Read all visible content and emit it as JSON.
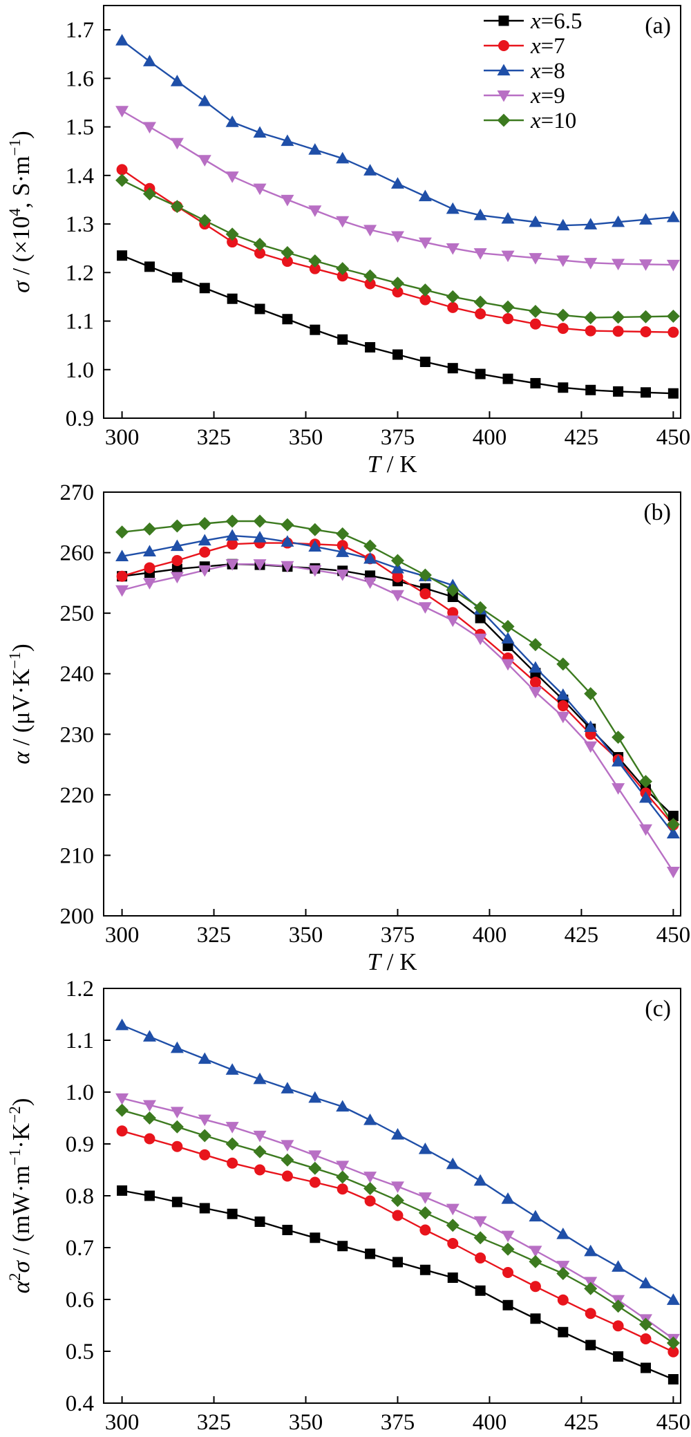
{
  "series_styles": [
    {
      "name": "6.5",
      "color": "#000000",
      "marker": "square"
    },
    {
      "name": "7",
      "color": "#e8141c",
      "marker": "circle"
    },
    {
      "name": "8",
      "color": "#1f4fa8",
      "marker": "triangle-up"
    },
    {
      "name": "9",
      "color": "#b86fc4",
      "marker": "triangle-down"
    },
    {
      "name": "10",
      "color": "#3c7a1f",
      "marker": "diamond"
    }
  ],
  "legend": {
    "prefix": "x",
    "eq": "=",
    "entries": [
      "6.5",
      "7",
      "8",
      "9",
      "10"
    ],
    "placement": "top-right (panel a)"
  },
  "chart_data": [
    {
      "type": "line",
      "panel": "(a)",
      "ylabel": {
        "symbol": "σ",
        "text": " / (×10",
        "sup": "4",
        "unit": ", S·m",
        "unitsup": "−1",
        "close": ")"
      },
      "xlabel": {
        "symbol": "T",
        "text": " / K"
      },
      "xlim": [
        295,
        452
      ],
      "ylim": [
        0.9,
        1.75
      ],
      "xticks": [
        300,
        325,
        350,
        375,
        400,
        425,
        450
      ],
      "yticks": [
        0.9,
        1.0,
        1.1,
        1.2,
        1.3,
        1.4,
        1.5,
        1.6,
        1.7
      ],
      "ytick_labels": [
        "0.9",
        "1.0",
        "1.1",
        "1.2",
        "1.3",
        "1.4",
        "1.5",
        "1.6",
        "1.7"
      ],
      "x": [
        300,
        307.5,
        315,
        322.5,
        330,
        337.5,
        345,
        352.5,
        360,
        367.5,
        375,
        382.5,
        390,
        397.5,
        405,
        412.5,
        420,
        427.5,
        435,
        442.5,
        450
      ],
      "series": [
        {
          "name": "6.5",
          "values": [
            1.235,
            1.212,
            1.19,
            1.168,
            1.146,
            1.125,
            1.104,
            1.082,
            1.062,
            1.046,
            1.031,
            1.016,
            1.003,
            0.991,
            0.981,
            0.972,
            0.963,
            0.958,
            0.955,
            0.953,
            0.951
          ]
        },
        {
          "name": "7",
          "values": [
            1.412,
            1.373,
            1.336,
            1.3,
            1.263,
            1.24,
            1.223,
            1.208,
            1.193,
            1.177,
            1.16,
            1.144,
            1.128,
            1.115,
            1.105,
            1.094,
            1.085,
            1.08,
            1.079,
            1.078,
            1.077
          ]
        },
        {
          "name": "8",
          "values": [
            1.678,
            1.635,
            1.594,
            1.553,
            1.51,
            1.488,
            1.471,
            1.453,
            1.435,
            1.41,
            1.383,
            1.357,
            1.331,
            1.318,
            1.311,
            1.304,
            1.297,
            1.299,
            1.304,
            1.309,
            1.314
          ]
        },
        {
          "name": "9",
          "values": [
            1.533,
            1.5,
            1.467,
            1.432,
            1.398,
            1.373,
            1.35,
            1.328,
            1.306,
            1.288,
            1.275,
            1.262,
            1.25,
            1.24,
            1.235,
            1.23,
            1.225,
            1.22,
            1.218,
            1.217,
            1.216
          ]
        },
        {
          "name": "10",
          "values": [
            1.39,
            1.362,
            1.336,
            1.307,
            1.279,
            1.258,
            1.241,
            1.224,
            1.208,
            1.193,
            1.178,
            1.164,
            1.15,
            1.139,
            1.129,
            1.12,
            1.112,
            1.107,
            1.108,
            1.109,
            1.11
          ]
        }
      ]
    },
    {
      "type": "line",
      "panel": "(b)",
      "ylabel": {
        "symbol": "α",
        "text": " / (μV·K",
        "sup": "−1",
        "close": ")"
      },
      "xlabel": {
        "symbol": "T",
        "text": " / K"
      },
      "xlim": [
        295,
        452
      ],
      "ylim": [
        200,
        270
      ],
      "xticks": [
        300,
        325,
        350,
        375,
        400,
        425,
        450
      ],
      "yticks": [
        200,
        210,
        220,
        230,
        240,
        250,
        260,
        270
      ],
      "ytick_labels": [
        "200",
        "210",
        "220",
        "230",
        "240",
        "250",
        "260",
        "270"
      ],
      "x": [
        300,
        307.5,
        315,
        322.5,
        330,
        337.5,
        345,
        352.5,
        360,
        367.5,
        375,
        382.5,
        390,
        397.5,
        405,
        412.5,
        420,
        427.5,
        435,
        442.5,
        450
      ],
      "series": [
        {
          "name": "6.5",
          "values": [
            256.1,
            256.7,
            257.3,
            257.7,
            258.1,
            258.0,
            257.7,
            257.4,
            257.0,
            256.2,
            255.3,
            254.1,
            252.7,
            249.2,
            244.6,
            240.1,
            235.7,
            230.9,
            226.2,
            220.9,
            216.5
          ]
        },
        {
          "name": "7",
          "values": [
            256.1,
            257.5,
            258.7,
            260.1,
            261.4,
            261.6,
            261.6,
            261.4,
            261.2,
            259.0,
            256.0,
            253.2,
            250.1,
            246.5,
            242.6,
            238.6,
            234.7,
            230.0,
            225.8,
            220.3,
            215.0
          ]
        },
        {
          "name": "8",
          "values": [
            259.4,
            260.2,
            261.1,
            262.0,
            262.8,
            262.5,
            261.8,
            261.0,
            260.1,
            259.0,
            257.4,
            256.1,
            254.6,
            250.6,
            245.8,
            241.0,
            236.5,
            231.2,
            225.5,
            219.5,
            213.6
          ]
        },
        {
          "name": "9",
          "values": [
            253.8,
            255.0,
            256.0,
            257.1,
            258.1,
            258.1,
            257.8,
            257.1,
            256.4,
            255.1,
            253.0,
            251.0,
            248.8,
            245.8,
            241.6,
            237.0,
            232.9,
            228.0,
            221.1,
            214.3,
            207.3
          ]
        },
        {
          "name": "10",
          "values": [
            263.4,
            263.9,
            264.4,
            264.8,
            265.2,
            265.2,
            264.6,
            263.8,
            263.1,
            261.1,
            258.7,
            256.3,
            253.8,
            250.9,
            247.8,
            244.8,
            241.6,
            236.7,
            229.5,
            222.2,
            215.1
          ]
        }
      ]
    },
    {
      "type": "line",
      "panel": "(c)",
      "ylabel": {
        "symbol": "α",
        "sup": "2",
        "symbol2": "σ",
        "text": " / (mW·m",
        "sup2": "−1",
        "text2": "·K",
        "sup3": "−2",
        "close": ")"
      },
      "xlabel": {
        "symbol": "T",
        "text": " / K"
      },
      "xlim": [
        295,
        452
      ],
      "ylim": [
        0.4,
        1.2
      ],
      "xticks": [
        300,
        325,
        350,
        375,
        400,
        425,
        450
      ],
      "yticks": [
        0.4,
        0.5,
        0.6,
        0.7,
        0.8,
        0.9,
        1.0,
        1.1,
        1.2
      ],
      "ytick_labels": [
        "0.4",
        "0.5",
        "0.6",
        "0.7",
        "0.8",
        "0.9",
        "1.0",
        "1.1",
        "1.2"
      ],
      "x": [
        300,
        307.5,
        315,
        322.5,
        330,
        337.5,
        345,
        352.5,
        360,
        367.5,
        375,
        382.5,
        390,
        397.5,
        405,
        412.5,
        420,
        427.5,
        435,
        442.5,
        450
      ],
      "series": [
        {
          "name": "6.5",
          "values": [
            0.81,
            0.8,
            0.788,
            0.776,
            0.765,
            0.75,
            0.734,
            0.719,
            0.703,
            0.688,
            0.672,
            0.657,
            0.642,
            0.617,
            0.589,
            0.563,
            0.537,
            0.512,
            0.49,
            0.468,
            0.446
          ]
        },
        {
          "name": "7",
          "values": [
            0.925,
            0.91,
            0.895,
            0.879,
            0.863,
            0.85,
            0.838,
            0.826,
            0.813,
            0.79,
            0.762,
            0.734,
            0.708,
            0.68,
            0.652,
            0.625,
            0.599,
            0.573,
            0.549,
            0.524,
            0.499
          ]
        },
        {
          "name": "8",
          "values": [
            1.129,
            1.107,
            1.085,
            1.064,
            1.043,
            1.025,
            1.007,
            0.989,
            0.972,
            0.946,
            0.918,
            0.89,
            0.861,
            0.829,
            0.794,
            0.76,
            0.726,
            0.693,
            0.663,
            0.631,
            0.599
          ]
        },
        {
          "name": "9",
          "values": [
            0.988,
            0.975,
            0.962,
            0.947,
            0.933,
            0.916,
            0.898,
            0.878,
            0.858,
            0.837,
            0.818,
            0.797,
            0.775,
            0.751,
            0.723,
            0.694,
            0.665,
            0.634,
            0.599,
            0.562,
            0.524
          ]
        },
        {
          "name": "10",
          "values": [
            0.965,
            0.95,
            0.933,
            0.916,
            0.9,
            0.885,
            0.869,
            0.853,
            0.836,
            0.814,
            0.791,
            0.767,
            0.743,
            0.719,
            0.697,
            0.673,
            0.65,
            0.621,
            0.587,
            0.552,
            0.516
          ]
        }
      ]
    }
  ]
}
